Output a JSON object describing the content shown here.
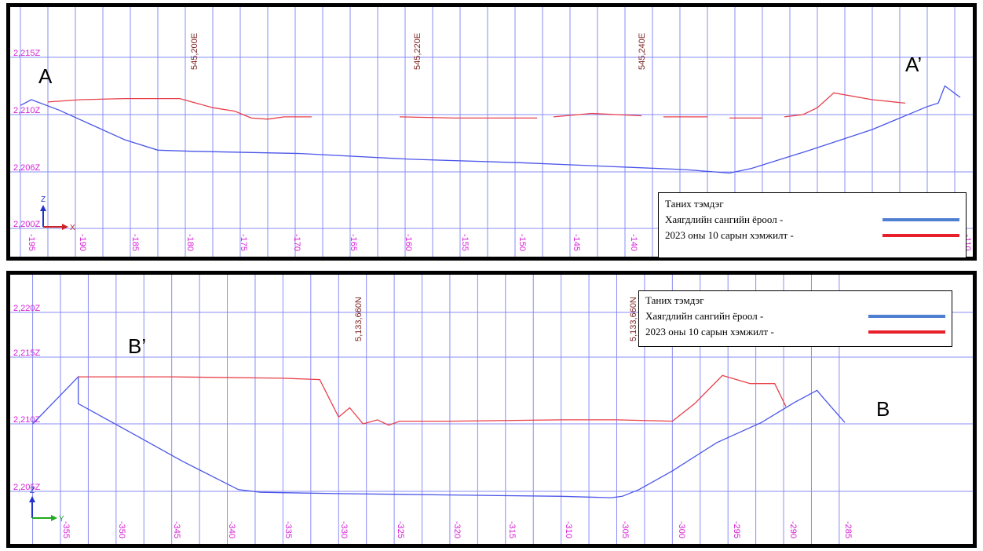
{
  "chart_data": [
    {
      "type": "line",
      "section": "A – A′",
      "point_labels": {
        "start": "A",
        "end": "A’"
      },
      "x_tick_labels": [
        "-195",
        "-190",
        "-185",
        "-180",
        "-175",
        "-170",
        "-165",
        "-160",
        "-155",
        "-150",
        "-145",
        "-140",
        "-110"
      ],
      "y_tick_labels": [
        "2,215Z",
        "2,210Z",
        "2,206Z",
        "2,200Z"
      ],
      "coord_labels": [
        "545,200E",
        "545,220E",
        "545,240E"
      ],
      "axis_triad": {
        "up": "Z",
        "right": "X"
      },
      "xlim": [
        -195.5,
        -110
      ],
      "ylim": [
        2200,
        2218
      ],
      "grid": true,
      "series": [
        {
          "name": "Хаягдлийн сангийн ёроол",
          "color": "#4a56e8",
          "points": [
            [
              -195.5,
              2210.8
            ],
            [
              -194.5,
              2211.3
            ],
            [
              -192,
              2210.4
            ],
            [
              -186,
              2207.8
            ],
            [
              -183,
              2206.9
            ],
            [
              -180,
              2206.8
            ],
            [
              -170,
              2206.6
            ],
            [
              -160,
              2206.1
            ],
            [
              -150,
              2205.8
            ],
            [
              -140,
              2205.4
            ],
            [
              -135,
              2205.2
            ],
            [
              -131,
              2204.9
            ],
            [
              -129,
              2205.3
            ],
            [
              -124,
              2206.8
            ],
            [
              -118,
              2208.7
            ],
            [
              -113,
              2210.7
            ],
            [
              -112,
              2211.0
            ],
            [
              -111.4,
              2212.5
            ],
            [
              -110,
              2211.5
            ]
          ]
        },
        {
          "name": "2023 оны 10 сарын хэмжилт",
          "color": "#e8404a",
          "segments": [
            [
              [
                -193,
                2211.1
              ],
              [
                -190,
                2211.3
              ],
              [
                -186,
                2211.4
              ],
              [
                -181,
                2211.4
              ],
              [
                -178,
                2210.6
              ],
              [
                -176,
                2210.3
              ],
              [
                -174.5,
                2209.7
              ],
              [
                -173,
                2209.6
              ],
              [
                -171.5,
                2209.8
              ],
              [
                -169,
                2209.8
              ]
            ],
            [
              [
                -161,
                2209.8
              ],
              [
                -156,
                2209.7
              ],
              [
                -148.5,
                2209.7
              ]
            ],
            [
              [
                -147,
                2209.8
              ],
              [
                -143.5,
                2210.1
              ],
              [
                -139,
                2209.9
              ]
            ],
            [
              [
                -137,
                2209.8
              ],
              [
                -133,
                2209.8
              ]
            ],
            [
              [
                -131,
                2209.7
              ],
              [
                -128,
                2209.7
              ]
            ],
            [
              [
                -126,
                2209.8
              ],
              [
                -124.3,
                2210.0
              ],
              [
                -123,
                2210.6
              ],
              [
                -121.5,
                2211.9
              ],
              [
                -118,
                2211.3
              ],
              [
                -115,
                2211.0
              ]
            ]
          ]
        }
      ],
      "legend": {
        "title": "Таних тэмдэг",
        "entries": [
          "Хаягдлийн сангийн ёроол      -",
          "2023 оны 10 сарын хэмжилт -"
        ]
      }
    },
    {
      "type": "line",
      "section": "B – B′",
      "point_labels": {
        "start": "B’",
        "end": "B"
      },
      "x_tick_labels": [
        "-355",
        "-350",
        "-345",
        "-340",
        "-335",
        "-330",
        "-325",
        "-320",
        "-315",
        "-310",
        "-305",
        "-300",
        "-295",
        "-290",
        "-285"
      ],
      "y_tick_labels": [
        "2,220Z",
        "2,215Z",
        "2,210Z",
        "2,205Z"
      ],
      "coord_labels": [
        "5,133,660N",
        "5,133,660N"
      ],
      "axis_triad": {
        "up": "Z",
        "right": "Y"
      },
      "xlim": [
        -357.5,
        -284.5
      ],
      "ylim": [
        2203.5,
        2221
      ],
      "grid": true,
      "series": [
        {
          "name": "Хаягдлийн сангийн ёроол",
          "color": "#4a56e8",
          "points": [
            [
              -357.5,
              2210.0
            ],
            [
              -353.4,
              2213.5
            ],
            [
              -353.4,
              2211.5
            ],
            [
              -349,
              2209.5
            ],
            [
              -344,
              2207.2
            ],
            [
              -339,
              2205.1
            ],
            [
              -337,
              2204.9
            ],
            [
              -330,
              2204.8
            ],
            [
              -320,
              2204.7
            ],
            [
              -310,
              2204.6
            ],
            [
              -305.5,
              2204.5
            ],
            [
              -304.5,
              2204.6
            ],
            [
              -303,
              2205.1
            ],
            [
              -300,
              2206.5
            ],
            [
              -296,
              2208.6
            ],
            [
              -292,
              2210.1
            ],
            [
              -289,
              2211.6
            ],
            [
              -287,
              2212.5
            ],
            [
              -286.5,
              2212.0
            ],
            [
              -284.5,
              2210.1
            ]
          ]
        },
        {
          "name": "2023 оны 10 сарын хэмжилт",
          "color": "#e8404a",
          "segments": [
            [
              [
                -353.4,
                2213.5
              ],
              [
                -345,
                2213.5
              ],
              [
                -335,
                2213.4
              ],
              [
                -331.7,
                2213.3
              ],
              [
                -330,
                2210.5
              ],
              [
                -329,
                2211.2
              ],
              [
                -327.8,
                2210.0
              ],
              [
                -326.5,
                2210.3
              ],
              [
                -325.5,
                2209.9
              ],
              [
                -324.5,
                2210.2
              ],
              [
                -320,
                2210.2
              ],
              [
                -310,
                2210.3
              ],
              [
                -305,
                2210.3
              ],
              [
                -300,
                2210.2
              ],
              [
                -298,
                2211.5
              ],
              [
                -295.5,
                2213.6
              ],
              [
                -293,
                2213.0
              ],
              [
                -290.8,
                2213.0
              ],
              [
                -289.8,
                2211.3
              ]
            ]
          ]
        }
      ],
      "legend": {
        "title": "Таних тэмдэг",
        "entries": [
          "Хаягдлийн сангийн ёроол      -",
          "2023 оны 10 сарын хэмжилт -"
        ]
      }
    }
  ]
}
